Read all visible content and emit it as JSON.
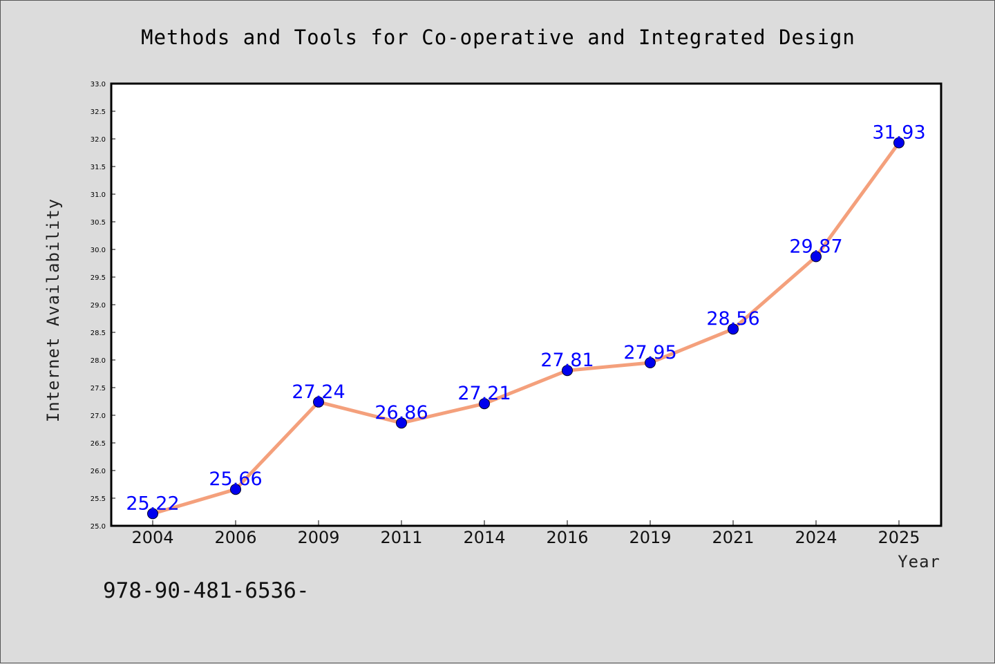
{
  "chart_data": {
    "type": "line",
    "title": "Methods and Tools for Co-operative and Integrated Design",
    "xlabel": "Year",
    "ylabel": "Internet Availability",
    "categories": [
      "2004",
      "2006",
      "2009",
      "2011",
      "2014",
      "2016",
      "2019",
      "2021",
      "2024",
      "2025"
    ],
    "series": [
      {
        "values": [
          25.22,
          25.66,
          27.24,
          26.86,
          27.21,
          27.81,
          27.95,
          28.56,
          29.87,
          31.93
        ]
      }
    ],
    "data_labels": [
      "25.22",
      "25.66",
      "27.24",
      "26.86",
      "27.21",
      "27.81",
      "27.95",
      "28.56",
      "29.87",
      "31.93"
    ],
    "ylim": [
      25.0,
      33.0
    ],
    "yticks": [
      "25.0",
      "25.5",
      "26.0",
      "26.5",
      "27.0",
      "27.5",
      "28.0",
      "28.5",
      "29.0",
      "29.5",
      "30.0",
      "30.5",
      "31.0",
      "31.5",
      "32.0",
      "32.5",
      "33.0"
    ],
    "grid": false,
    "legend": "none",
    "colors": {
      "line": "#f4a07c",
      "marker": "#0000ee",
      "label": "#0000ff",
      "plot_bg": "#ffffff",
      "page_bg": "#dcdcdc"
    }
  },
  "footer": {
    "isbn_text": "978-90-481-6536-"
  }
}
